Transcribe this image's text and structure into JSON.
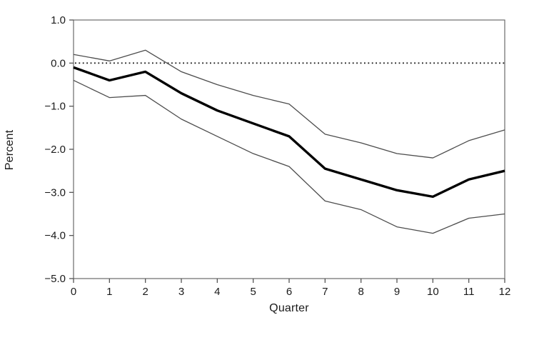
{
  "figure": {
    "background": "#ffffff"
  },
  "axes": {
    "y_title": "Percent",
    "x_title": "Quarter"
  },
  "chart_data": {
    "type": "line",
    "title": "",
    "xlabel": "Quarter",
    "ylabel": "Percent",
    "xlim": [
      0,
      12
    ],
    "ylim": [
      -5.0,
      1.0
    ],
    "grid": false,
    "legend": "none",
    "x": [
      0,
      1,
      2,
      3,
      4,
      5,
      6,
      7,
      8,
      9,
      10,
      11,
      12
    ],
    "x_tick_labels": [
      "0",
      "1",
      "2",
      "3",
      "4",
      "5",
      "6",
      "7",
      "8",
      "9",
      "10",
      "11",
      "12"
    ],
    "y_ticks": [
      1.0,
      0.0,
      -1.0,
      -2.0,
      -3.0,
      -4.0,
      -5.0
    ],
    "y_tick_labels": [
      "1.0",
      "0.0",
      "−1.0",
      "−2.0",
      "−3.0",
      "−4.0",
      "−5.0"
    ],
    "zero_reference_line": {
      "y": 0.0,
      "style": "dotted",
      "color": "#1c1c1c"
    },
    "series": [
      {
        "name": "upper-confidence-band",
        "style": "thin",
        "color": "#4d4d4d",
        "width": 1.3,
        "values": [
          0.2,
          0.05,
          0.3,
          -0.2,
          -0.5,
          -0.75,
          -0.95,
          -1.65,
          -1.85,
          -2.1,
          -2.2,
          -1.8,
          -1.55
        ]
      },
      {
        "name": "point-estimate",
        "style": "thick",
        "color": "#000000",
        "width": 3.4,
        "values": [
          -0.1,
          -0.4,
          -0.2,
          -0.7,
          -1.1,
          -1.4,
          -1.7,
          -2.45,
          -2.7,
          -2.95,
          -3.1,
          -2.7,
          -2.5
        ]
      },
      {
        "name": "lower-confidence-band",
        "style": "thin",
        "color": "#4d4d4d",
        "width": 1.3,
        "values": [
          -0.4,
          -0.8,
          -0.75,
          -1.3,
          -1.7,
          -2.1,
          -2.4,
          -3.2,
          -3.4,
          -3.8,
          -3.95,
          -3.6,
          -3.5
        ]
      }
    ],
    "frame_color": "#6b6b6b",
    "tick_color": "#555555",
    "label_color": "#1a1a1a"
  }
}
